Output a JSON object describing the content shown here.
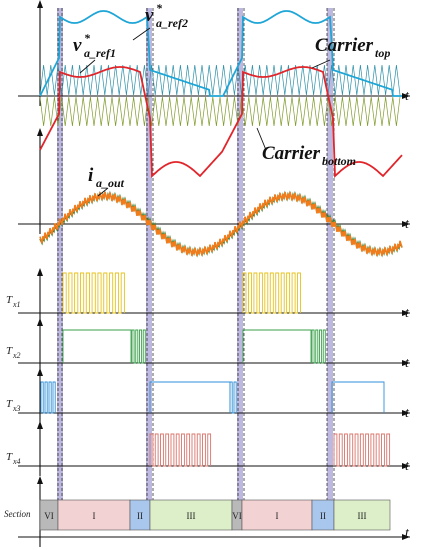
{
  "labels": {
    "v_ref2_main": "v",
    "v_ref2_star": "*",
    "v_ref2_sub": "a_ref2",
    "v_ref1_main": "v",
    "v_ref1_star": "*",
    "v_ref1_sub": "a_ref1",
    "carrier_top_main": "Carrier",
    "carrier_top_sub": "top",
    "carrier_bottom_main": "Carrier",
    "carrier_bottom_sub": "bottom",
    "i_out_main": "i",
    "i_out_sub": "a_out",
    "time_axis": "t"
  },
  "switch_labels": [
    {
      "main": "T",
      "sub": "x1"
    },
    {
      "main": "T",
      "sub": "x2"
    },
    {
      "main": "T",
      "sub": "x3"
    },
    {
      "main": "T",
      "sub": "x4"
    }
  ],
  "section_title": "Section",
  "sections": [
    "VI",
    "I",
    "II",
    "III",
    "VI",
    "I",
    "II",
    "III"
  ],
  "colors": {
    "ref2": "#1fa6d6",
    "ref1": "#e0252b",
    "carrier_top": "#2a8fa8",
    "carrier_bottom": "#7e9a2a",
    "current_green": "#3a7d2e",
    "current_orange": "#f07c1c",
    "tx1": "#e6c21a",
    "tx2": "#3aa04a",
    "tx3": "#2f8fd8",
    "tx4": "#d9746b",
    "sec_VI": "#b9b9b9",
    "sec_I": "#f2d2d2",
    "sec_II": "#a9c6ec",
    "sec_III": "#dcefc8",
    "highlight": "#a7a0d6"
  }
}
